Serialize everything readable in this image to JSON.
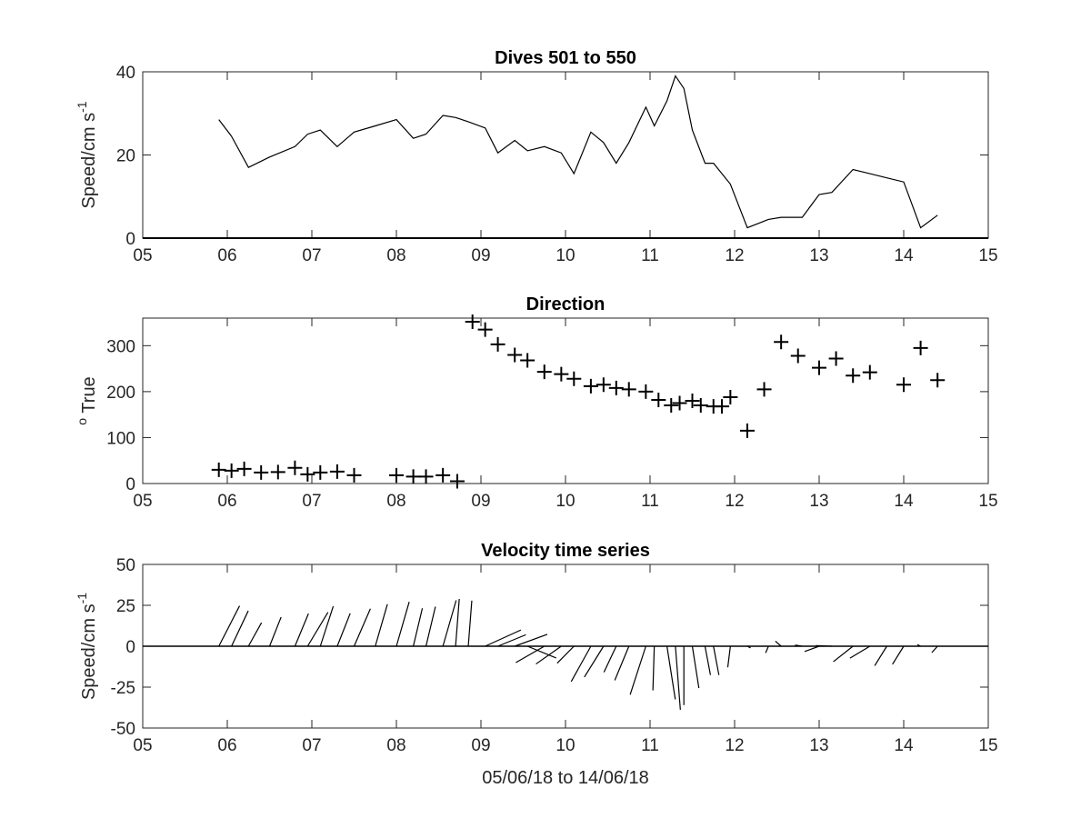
{
  "chart_data": [
    {
      "type": "line",
      "title": "Dives 501 to 550",
      "ylabel": {
        "text": "Speed/cm s",
        "superscript": "-1"
      },
      "xlim": [
        5,
        15
      ],
      "ylim": [
        0,
        40
      ],
      "xticks": [
        5,
        6,
        7,
        8,
        9,
        10,
        11,
        12,
        13,
        14,
        15
      ],
      "xtick_labels": [
        "05",
        "06",
        "07",
        "08",
        "09",
        "10",
        "11",
        "12",
        "13",
        "14",
        "15"
      ],
      "yticks": [
        0,
        20,
        40
      ],
      "ytick_labels": [
        "0",
        "20",
        "40"
      ],
      "series": [
        {
          "x": [
            5.9,
            6.05,
            6.25,
            6.5,
            6.8,
            6.95,
            7.1,
            7.3,
            7.5,
            7.75,
            8.0,
            8.2,
            8.35,
            8.55,
            8.7,
            8.85,
            9.05,
            9.2,
            9.4,
            9.55,
            9.75,
            9.95,
            10.1,
            10.3,
            10.45,
            10.6,
            10.75,
            10.95,
            11.05,
            11.2,
            11.3,
            11.4,
            11.5,
            11.65,
            11.75,
            11.95,
            12.15,
            12.4,
            12.55,
            12.8,
            13.0,
            13.15,
            13.4,
            13.6,
            13.8,
            14.0,
            14.2,
            14.4
          ],
          "y": [
            28.5,
            24.5,
            17,
            19.5,
            22,
            25,
            26,
            22,
            25.5,
            27,
            28.5,
            24,
            25,
            29.5,
            29,
            28,
            26.5,
            20.5,
            23.5,
            21,
            22,
            20.5,
            15.5,
            25.5,
            23,
            18,
            23,
            31.5,
            27,
            33,
            39,
            36,
            26,
            18,
            18,
            13,
            2.5,
            4.5,
            5,
            5,
            10.5,
            11,
            16.5,
            15.5,
            14.5,
            13.5,
            2.5,
            5.5
          ]
        }
      ]
    },
    {
      "type": "scatter",
      "title": "Direction",
      "ylabel": {
        "text": "True",
        "superscript": "o"
      },
      "xlim": [
        5,
        15
      ],
      "ylim": [
        0,
        360
      ],
      "xticks": [
        5,
        6,
        7,
        8,
        9,
        10,
        11,
        12,
        13,
        14,
        15
      ],
      "xtick_labels": [
        "05",
        "06",
        "07",
        "08",
        "09",
        "10",
        "11",
        "12",
        "13",
        "14",
        "15"
      ],
      "yticks": [
        0,
        100,
        200,
        300
      ],
      "ytick_labels": [
        "0",
        "100",
        "200",
        "300"
      ],
      "marker": "+",
      "series": [
        {
          "x": [
            5.9,
            6.05,
            6.2,
            6.4,
            6.6,
            6.8,
            6.95,
            7.1,
            7.3,
            7.5,
            8.0,
            8.2,
            8.35,
            8.55,
            8.72,
            8.9,
            9.05,
            9.2,
            9.4,
            9.55,
            9.75,
            9.95,
            10.1,
            10.3,
            10.45,
            10.6,
            10.75,
            10.95,
            11.1,
            11.25,
            11.35,
            11.5,
            11.6,
            11.75,
            11.85,
            11.95,
            12.15,
            12.35,
            12.55,
            12.75,
            13.0,
            13.2,
            13.4,
            13.6,
            14.0,
            14.2,
            14.4
          ],
          "y": [
            30,
            28,
            32,
            24,
            25,
            34,
            20,
            24,
            26,
            18,
            18,
            15,
            15,
            18,
            5,
            352,
            335,
            303,
            280,
            268,
            243,
            238,
            228,
            212,
            215,
            208,
            205,
            200,
            182,
            170,
            175,
            180,
            170,
            168,
            168,
            188,
            115,
            205,
            308,
            278,
            252,
            272,
            235,
            242,
            215,
            295,
            225
          ]
        }
      ]
    },
    {
      "type": "quiver",
      "title": "Velocity time series",
      "xlabel": "05/06/18 to 14/06/18",
      "ylabel": {
        "text": "Speed/cm s",
        "superscript": "-1"
      },
      "xlim": [
        5,
        15
      ],
      "ylim": [
        -50,
        50
      ],
      "xticks": [
        5,
        6,
        7,
        8,
        9,
        10,
        11,
        12,
        13,
        14,
        15
      ],
      "xtick_labels": [
        "05",
        "06",
        "07",
        "08",
        "09",
        "10",
        "11",
        "12",
        "13",
        "14",
        "15"
      ],
      "yticks": [
        -50,
        -25,
        0,
        25,
        50
      ],
      "ytick_labels": [
        "-50",
        "-25",
        "0",
        "25",
        "50"
      ],
      "stick_origin_y": 0,
      "series": [
        {
          "x": [
            5.9,
            6.05,
            6.25,
            6.5,
            6.8,
            6.95,
            7.1,
            7.3,
            7.5,
            7.75,
            8.0,
            8.2,
            8.35,
            8.55,
            8.7,
            8.85,
            9.05,
            9.2,
            9.4,
            9.55,
            9.75,
            9.95,
            10.1,
            10.3,
            10.45,
            10.6,
            10.75,
            10.95,
            11.05,
            11.2,
            11.3,
            11.4,
            11.5,
            11.65,
            11.75,
            11.95,
            12.15,
            12.4,
            12.55,
            12.8,
            13.0,
            13.15,
            13.4,
            13.6,
            13.8,
            14.0,
            14.2,
            14.4
          ],
          "speed": [
            28.5,
            24.5,
            17,
            19.5,
            22,
            25,
            26,
            22,
            25.5,
            27,
            28.5,
            24,
            25,
            29.5,
            29,
            28,
            26.5,
            20.5,
            23.5,
            21,
            22,
            20.5,
            15.5,
            25.5,
            23,
            18,
            23,
            31.5,
            27,
            33,
            39,
            36,
            26,
            18,
            18,
            13,
            2.5,
            4.5,
            5,
            5,
            10.5,
            11,
            16.5,
            15.5,
            14.5,
            13.5,
            2.5,
            5.5
          ],
          "direction": [
            30,
            28,
            32,
            24,
            25,
            34,
            20,
            24,
            26,
            18,
            18,
            15,
            15,
            18,
            5,
            5,
            68,
            70,
            72,
            110,
            243,
            238,
            228,
            212,
            215,
            208,
            205,
            200,
            182,
            170,
            175,
            180,
            170,
            168,
            168,
            188,
            115,
            205,
            308,
            278,
            252,
            272,
            235,
            242,
            215,
            215,
            295,
            225
          ]
        }
      ]
    }
  ]
}
